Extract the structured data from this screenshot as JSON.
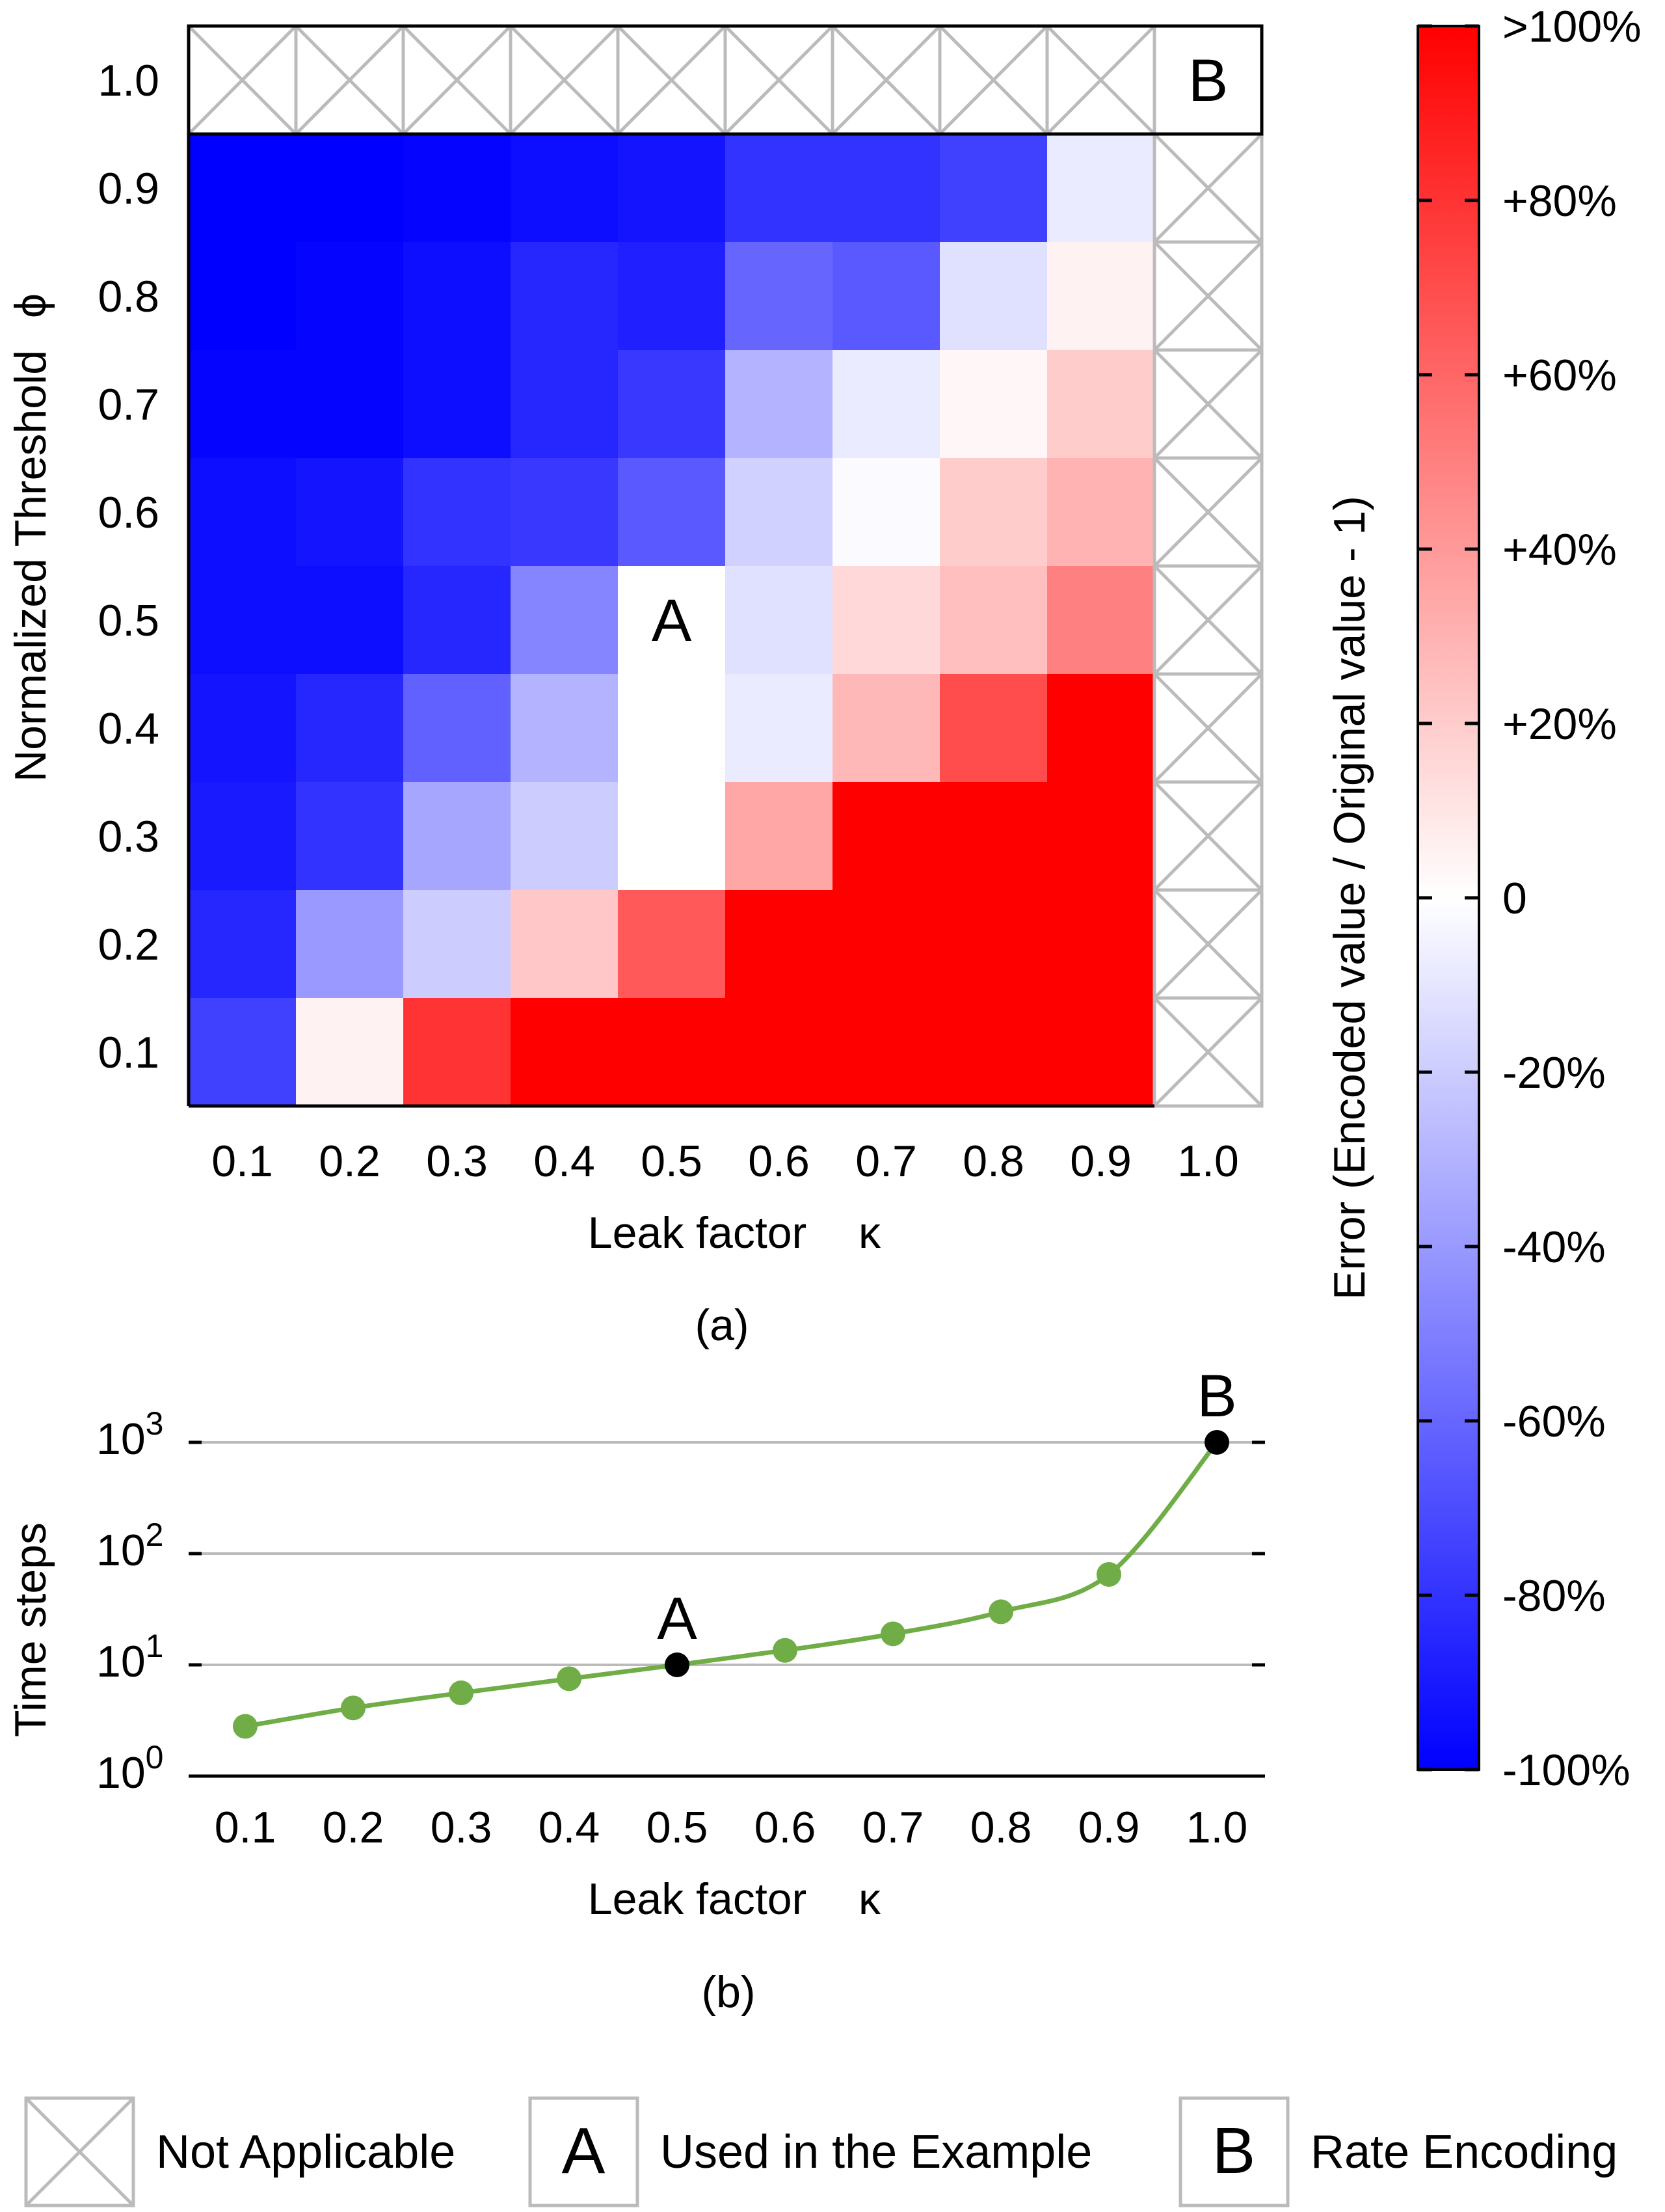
{
  "colors": {
    "blue": "#0000ff",
    "white": "#ffffff",
    "red": "#ff0000",
    "na_cross": "#bbbbbb",
    "na_border": "#bbbbbb",
    "grid": "#bbbbbb",
    "line": "#70ad47",
    "marker": "#70ad47",
    "highlight_marker": "#000000"
  },
  "chart_data": [
    {
      "type": "heatmap",
      "caption": "(a)",
      "xlabel": "Leak factor",
      "xsymbol": "κ",
      "ylabel": "Normalized Threshold",
      "ysymbol": "ϕ",
      "x_ticks": [
        "0.1",
        "0.2",
        "0.3",
        "0.4",
        "0.5",
        "0.6",
        "0.7",
        "0.8",
        "0.9",
        "1.0"
      ],
      "y_ticks": [
        "1.0",
        "0.9",
        "0.8",
        "0.7",
        "0.6",
        "0.5",
        "0.4",
        "0.3",
        "0.2",
        "0.1"
      ],
      "value_unit": "%",
      "note": "rows ordered top (phi=1.0) to bottom (phi=0.1); columns kappa 0.1..1.0; null = Not Applicable; 100 = >100%",
      "grid": [
        [
          null,
          null,
          null,
          null,
          null,
          null,
          null,
          null,
          null,
          "B"
        ],
        [
          -100,
          -100,
          -98,
          -95,
          -92,
          -80,
          -80,
          -75,
          -8,
          null
        ],
        [
          -100,
          -98,
          -95,
          -85,
          -88,
          -60,
          -65,
          -12,
          5,
          null
        ],
        [
          -98,
          -98,
          -95,
          -85,
          -78,
          -30,
          -8,
          3,
          20,
          null
        ],
        [
          -95,
          -92,
          -80,
          -78,
          -65,
          -18,
          -2,
          20,
          30,
          null
        ],
        [
          -95,
          -95,
          -85,
          -48,
          "A",
          -12,
          15,
          25,
          50,
          null
        ],
        [
          -92,
          -85,
          -62,
          -30,
          0,
          -8,
          28,
          70,
          100,
          null
        ],
        [
          -90,
          -80,
          -35,
          -20,
          0,
          35,
          100,
          100,
          100,
          null
        ],
        [
          -85,
          -40,
          -20,
          22,
          65,
          100,
          100,
          100,
          100,
          null
        ],
        [
          -75,
          5,
          80,
          100,
          100,
          100,
          100,
          100,
          100,
          null
        ]
      ],
      "cell_labels": {
        "A": "A",
        "B": "B"
      },
      "a_cell_value": 0,
      "colorbar": {
        "label": "Error (Encoded value / Original value - 1)",
        "range": [
          -100,
          100
        ],
        "ticks": [
          ">100%",
          "+80%",
          "+60%",
          "+40%",
          "+20%",
          "0",
          "-20%",
          "-40%",
          "-60%",
          "-80%",
          "-100%"
        ]
      }
    },
    {
      "type": "line",
      "caption": "(b)",
      "xlabel": "Leak factor",
      "xsymbol": "κ",
      "ylabel": "Time steps",
      "yscale": "log",
      "ylim": [
        1,
        1000
      ],
      "x_ticks": [
        "0.1",
        "0.2",
        "0.3",
        "0.4",
        "0.5",
        "0.6",
        "0.7",
        "0.8",
        "0.9",
        "1.0"
      ],
      "y_ticks": [
        {
          "base": "10",
          "exp": "0"
        },
        {
          "base": "10",
          "exp": "1"
        },
        {
          "base": "10",
          "exp": "2"
        },
        {
          "base": "10",
          "exp": "3"
        }
      ],
      "x": [
        0.1,
        0.2,
        0.3,
        0.4,
        0.5,
        0.6,
        0.7,
        0.8,
        0.9,
        1.0
      ],
      "y": [
        2.8,
        4.1,
        5.6,
        7.5,
        10,
        13.5,
        19,
        30,
        65,
        1000
      ],
      "highlighted": [
        {
          "x": 0.5,
          "label": "A"
        },
        {
          "x": 1.0,
          "label": "B"
        }
      ]
    }
  ],
  "legend": {
    "items": [
      {
        "key": "cross",
        "label": "Not Applicable"
      },
      {
        "key": "A",
        "symbol": "A",
        "label": "Used in the Example"
      },
      {
        "key": "B",
        "symbol": "B",
        "label": "Rate Encoding"
      }
    ]
  }
}
